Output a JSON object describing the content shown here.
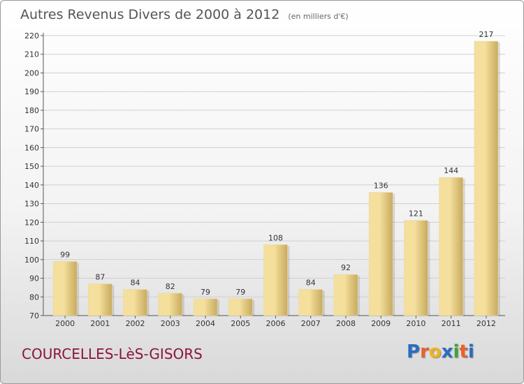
{
  "header": {
    "title": "Autres Revenus Divers de 2000 à 2012",
    "subtitle": "(en milliers d'€)"
  },
  "footer": {
    "commune": "COURCELLES-LèS-GISORS",
    "logo_letters": [
      "P",
      "r",
      "o",
      "x",
      "i",
      "t",
      "i"
    ],
    "logo_colors": [
      "#2a6cc4",
      "#e8622a",
      "#f0b21e",
      "#2a6cc4",
      "#3aa53a",
      "#e8622a",
      "#2a6cc4"
    ]
  },
  "colors": {
    "bar_light": "#f4df9c",
    "bar_dark": "#c8aa5e",
    "grid": "#cfcfcf",
    "text": "#333333"
  },
  "chart_data": {
    "type": "bar",
    "title": "Autres Revenus Divers de 2000 à 2012",
    "subtitle": "(en milliers d'€)",
    "xlabel": "",
    "ylabel": "",
    "categories": [
      "2000",
      "2001",
      "2002",
      "2003",
      "2004",
      "2005",
      "2006",
      "2007",
      "2008",
      "2009",
      "2010",
      "2011",
      "2012"
    ],
    "values": [
      99,
      87,
      84,
      82,
      79,
      79,
      108,
      84,
      92,
      136,
      121,
      144,
      217
    ],
    "ylim": [
      70,
      220
    ],
    "yticks": [
      70,
      80,
      90,
      100,
      110,
      120,
      130,
      140,
      150,
      160,
      170,
      180,
      190,
      200,
      210,
      220
    ],
    "grid": true,
    "data_labels": true
  }
}
